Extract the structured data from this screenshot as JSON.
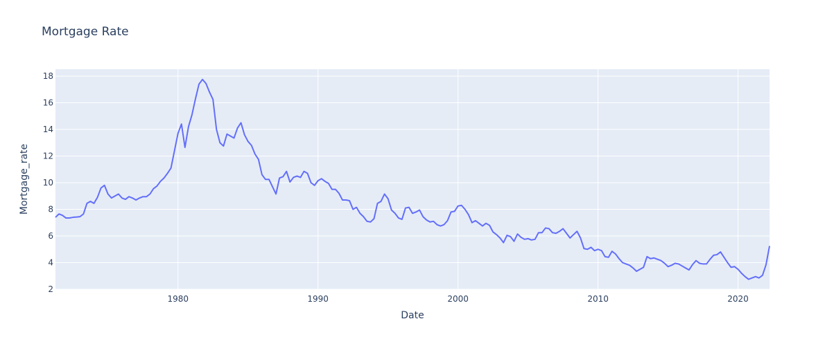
{
  "chart_data": {
    "type": "line",
    "title": "Mortgage Rate",
    "xlabel": "Date",
    "ylabel": "Mortgage_rate",
    "color": "#636efa",
    "grid": true,
    "xlim": [
      1971.25,
      2022.25
    ],
    "xticks": [
      1980,
      1990,
      2000,
      2010,
      2020
    ],
    "ylim": [
      2,
      18.52
    ],
    "yticks": [
      2,
      4,
      6,
      8,
      10,
      12,
      14,
      16,
      18
    ],
    "x": [
      1971.25,
      1971.5,
      1971.75,
      1972,
      1972.25,
      1972.5,
      1972.75,
      1973,
      1973.25,
      1973.5,
      1973.75,
      1974,
      1974.25,
      1974.5,
      1974.75,
      1975,
      1975.25,
      1975.5,
      1975.75,
      1976,
      1976.25,
      1976.5,
      1976.75,
      1977,
      1977.25,
      1977.5,
      1977.75,
      1978,
      1978.25,
      1978.5,
      1978.75,
      1979,
      1979.25,
      1979.5,
      1979.75,
      1980,
      1980.25,
      1980.5,
      1980.75,
      1981,
      1981.25,
      1981.5,
      1981.75,
      1982,
      1982.25,
      1982.5,
      1982.75,
      1983,
      1983.25,
      1983.5,
      1983.75,
      1984,
      1984.25,
      1984.5,
      1984.75,
      1985,
      1985.25,
      1985.5,
      1985.75,
      1986,
      1986.25,
      1986.5,
      1986.75,
      1987,
      1987.25,
      1987.5,
      1987.75,
      1988,
      1988.25,
      1988.5,
      1988.75,
      1989,
      1989.25,
      1989.5,
      1989.75,
      1990,
      1990.25,
      1990.5,
      1990.75,
      1991,
      1991.25,
      1991.5,
      1991.75,
      1992,
      1992.25,
      1992.5,
      1992.75,
      1993,
      1993.25,
      1993.5,
      1993.75,
      1994,
      1994.25,
      1994.5,
      1994.75,
      1995,
      1995.25,
      1995.5,
      1995.75,
      1996,
      1996.25,
      1996.5,
      1996.75,
      1997,
      1997.25,
      1997.5,
      1997.75,
      1998,
      1998.25,
      1998.5,
      1998.75,
      1999,
      1999.25,
      1999.5,
      1999.75,
      2000,
      2000.25,
      2000.5,
      2000.75,
      2001,
      2001.25,
      2001.5,
      2001.75,
      2002,
      2002.25,
      2002.5,
      2002.75,
      2003,
      2003.25,
      2003.5,
      2003.75,
      2004,
      2004.25,
      2004.5,
      2004.75,
      2005,
      2005.25,
      2005.5,
      2005.75,
      2006,
      2006.25,
      2006.5,
      2006.75,
      2007,
      2007.25,
      2007.5,
      2007.75,
      2008,
      2008.25,
      2008.5,
      2008.75,
      2009,
      2009.25,
      2009.5,
      2009.75,
      2010,
      2010.25,
      2010.5,
      2010.75,
      2011,
      2011.25,
      2011.5,
      2011.75,
      2012,
      2012.25,
      2012.5,
      2012.75,
      2013,
      2013.25,
      2013.5,
      2013.75,
      2014,
      2014.25,
      2014.5,
      2014.75,
      2015,
      2015.25,
      2015.5,
      2015.75,
      2016,
      2016.25,
      2016.5,
      2016.75,
      2017,
      2017.25,
      2017.5,
      2017.75,
      2018,
      2018.25,
      2018.5,
      2018.75,
      2019,
      2019.25,
      2019.5,
      2019.75,
      2020,
      2020.25,
      2020.5,
      2020.75,
      2021,
      2021.25,
      2021.5,
      2021.75,
      2022,
      2022.25
    ],
    "values": [
      7.4,
      7.65,
      7.55,
      7.35,
      7.35,
      7.4,
      7.42,
      7.45,
      7.65,
      8.45,
      8.6,
      8.45,
      8.9,
      9.6,
      9.8,
      9.15,
      8.85,
      9.0,
      9.15,
      8.85,
      8.75,
      8.95,
      8.85,
      8.7,
      8.85,
      8.95,
      8.95,
      9.15,
      9.55,
      9.75,
      10.1,
      10.35,
      10.7,
      11.1,
      12.4,
      13.7,
      14.4,
      12.65,
      14.2,
      15.1,
      16.3,
      17.4,
      17.75,
      17.45,
      16.8,
      16.25,
      14.0,
      13.0,
      12.75,
      13.65,
      13.5,
      13.35,
      14.1,
      14.5,
      13.6,
      13.1,
      12.8,
      12.15,
      11.75,
      10.6,
      10.25,
      10.25,
      9.7,
      9.15,
      10.35,
      10.45,
      10.85,
      10.05,
      10.4,
      10.5,
      10.4,
      10.85,
      10.7,
      10.0,
      9.8,
      10.15,
      10.3,
      10.1,
      9.95,
      9.5,
      9.5,
      9.2,
      8.7,
      8.7,
      8.65,
      8.0,
      8.15,
      7.7,
      7.45,
      7.1,
      7.05,
      7.3,
      8.45,
      8.6,
      9.15,
      8.8,
      7.95,
      7.7,
      7.35,
      7.25,
      8.1,
      8.15,
      7.7,
      7.8,
      7.95,
      7.45,
      7.2,
      7.05,
      7.1,
      6.85,
      6.75,
      6.85,
      7.15,
      7.8,
      7.85,
      8.25,
      8.3,
      8.0,
      7.6,
      7.0,
      7.15,
      6.95,
      6.75,
      6.95,
      6.8,
      6.3,
      6.1,
      5.85,
      5.5,
      6.05,
      5.95,
      5.6,
      6.15,
      5.9,
      5.75,
      5.8,
      5.7,
      5.75,
      6.25,
      6.25,
      6.6,
      6.55,
      6.25,
      6.2,
      6.35,
      6.55,
      6.2,
      5.85,
      6.1,
      6.35,
      5.85,
      5.05,
      5.0,
      5.15,
      4.9,
      5.0,
      4.9,
      4.45,
      4.4,
      4.85,
      4.65,
      4.3,
      4.0,
      3.9,
      3.8,
      3.6,
      3.35,
      3.5,
      3.65,
      4.45,
      4.3,
      4.35,
      4.25,
      4.15,
      3.95,
      3.7,
      3.8,
      3.95,
      3.9,
      3.75,
      3.6,
      3.45,
      3.85,
      4.15,
      3.95,
      3.9,
      3.9,
      4.25,
      4.55,
      4.6,
      4.8,
      4.4,
      4.0,
      3.65,
      3.7,
      3.5,
      3.2,
      2.95,
      2.75,
      2.85,
      2.95,
      2.85,
      3.05,
      3.85,
      5.25
    ]
  }
}
